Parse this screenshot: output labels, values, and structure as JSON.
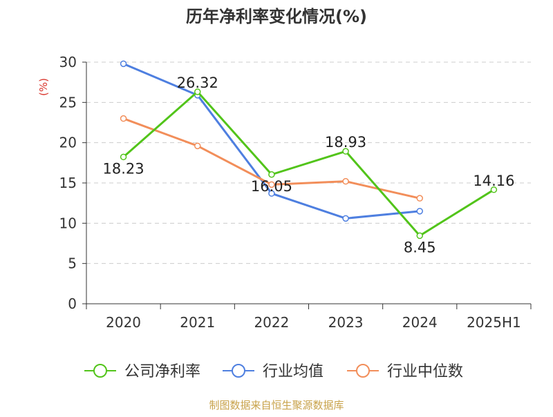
{
  "chart_data": {
    "type": "line",
    "title": "历年净利率变化情况(%)",
    "ylabel": "(%)",
    "xlabel": "",
    "categories": [
      "2020",
      "2021",
      "2022",
      "2023",
      "2024",
      "2025H1"
    ],
    "ylim": [
      0,
      30
    ],
    "yticks": [
      0,
      5,
      10,
      15,
      20,
      25,
      30
    ],
    "grid": true,
    "legend_position": "bottom",
    "series": [
      {
        "name": "公司净利率",
        "color": "#52c41a",
        "values": [
          18.23,
          26.32,
          16.05,
          18.93,
          8.45,
          14.16
        ],
        "labels": [
          "18.23",
          "26.32",
          "16.05",
          "18.93",
          "8.45",
          "14.16"
        ]
      },
      {
        "name": "行业均值",
        "color": "#4e7fe0",
        "values": [
          29.8,
          25.9,
          13.7,
          10.6,
          11.5,
          null
        ],
        "labels": []
      },
      {
        "name": "行业中位数",
        "color": "#f28e5a",
        "values": [
          23.0,
          19.6,
          14.8,
          15.2,
          13.1,
          null
        ],
        "labels": []
      }
    ]
  },
  "footer": {
    "source": "制图数据来自恒生聚源数据库"
  }
}
